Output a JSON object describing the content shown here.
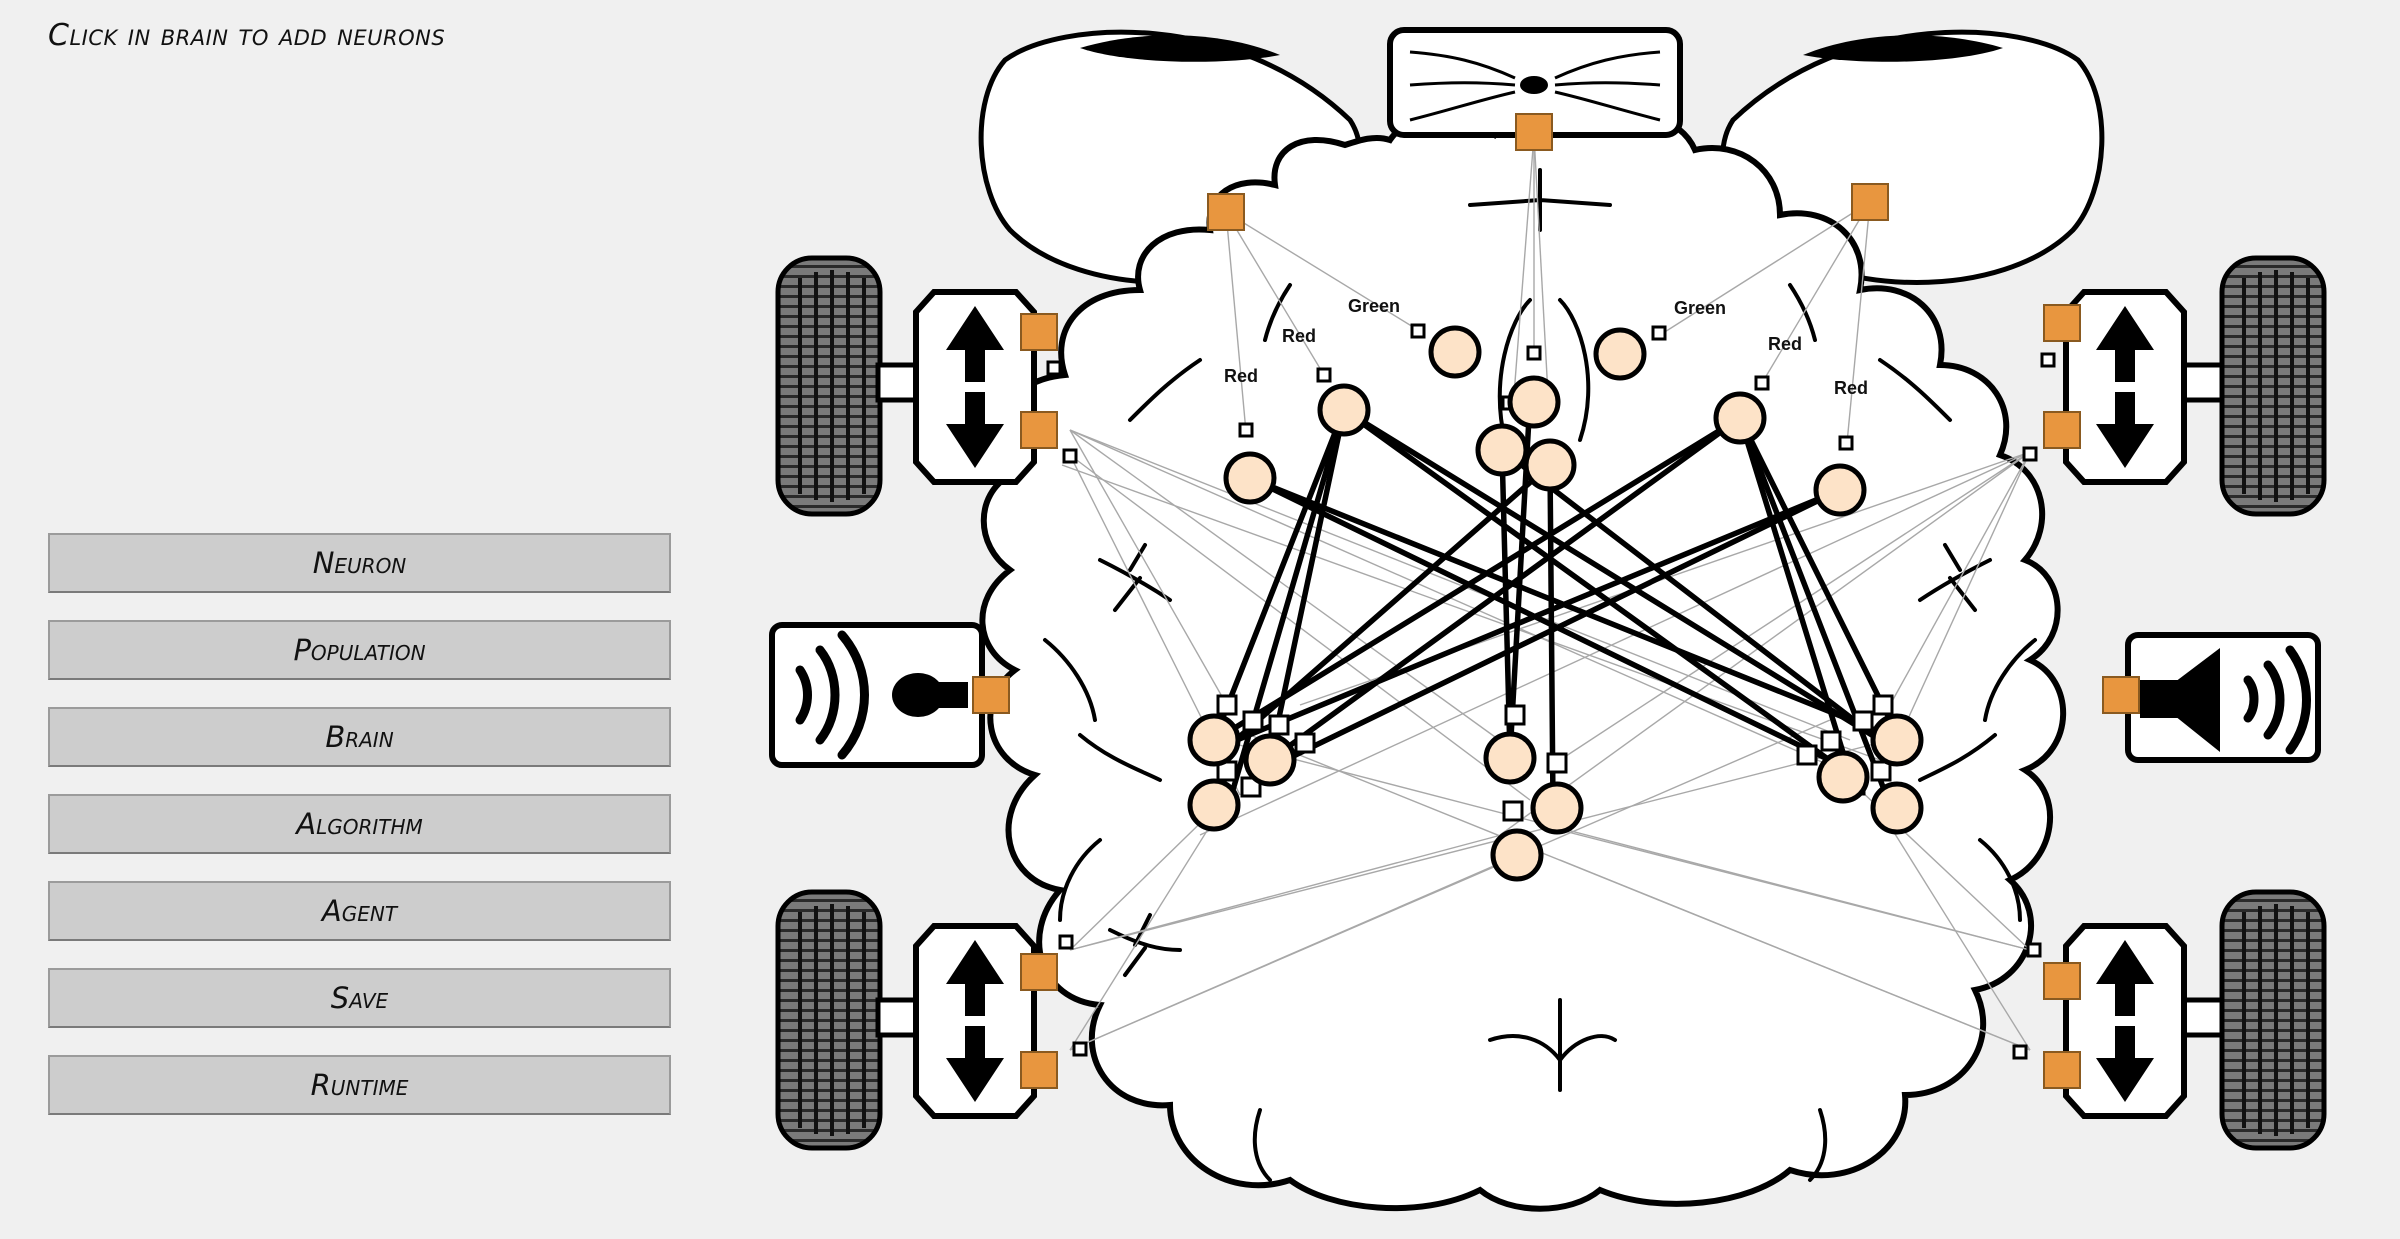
{
  "app": {
    "hint": "Click in brain to add neurons"
  },
  "menu": {
    "items": [
      {
        "id": "neuron",
        "label": "Neuron"
      },
      {
        "id": "population",
        "label": "Population"
      },
      {
        "id": "brain",
        "label": "Brain"
      },
      {
        "id": "algorithm",
        "label": "Algorithm"
      },
      {
        "id": "agent",
        "label": "Agent"
      },
      {
        "id": "save",
        "label": "Save"
      },
      {
        "id": "runtime",
        "label": "Runtime"
      }
    ]
  },
  "brain": {
    "sensor_labels": {
      "red_1": "Red",
      "red_2": "Red",
      "green_1": "Green",
      "green_2": "Green",
      "red_3": "Red",
      "red_4": "Red"
    },
    "colors": {
      "neuron_fill": "#fde3c8",
      "sensor_fill": "#e8963f",
      "outline": "#000000",
      "wheel": "#777777"
    }
  }
}
